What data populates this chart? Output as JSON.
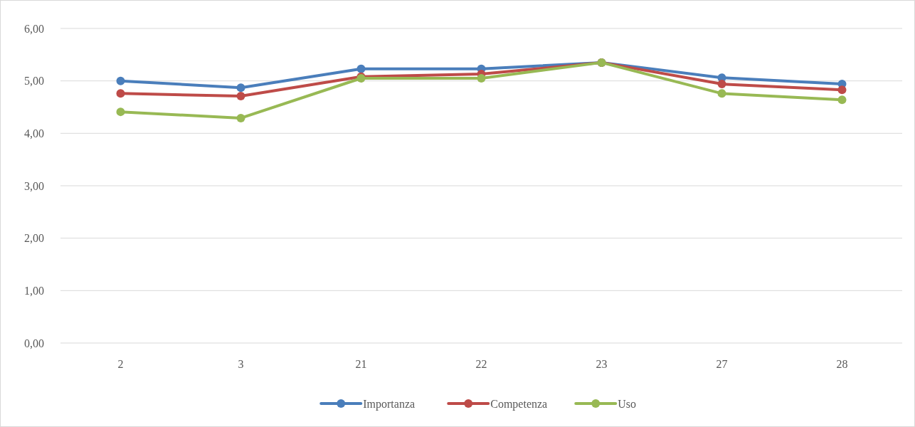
{
  "chart_data": {
    "type": "line",
    "categories": [
      "2",
      "3",
      "21",
      "22",
      "23",
      "27",
      "28"
    ],
    "series": [
      {
        "name": "Importanza",
        "color": "#4a7ebb",
        "values": [
          5.0,
          4.87,
          5.23,
          5.23,
          5.35,
          5.06,
          4.94
        ]
      },
      {
        "name": "Competenza",
        "color": "#be4b48",
        "values": [
          4.76,
          4.71,
          5.08,
          5.13,
          5.35,
          4.94,
          4.83
        ]
      },
      {
        "name": "Uso",
        "color": "#98b954",
        "values": [
          4.41,
          4.29,
          5.05,
          5.05,
          5.35,
          4.76,
          4.64
        ]
      }
    ],
    "ylim": [
      0,
      6
    ],
    "yticks": [
      {
        "value": 0,
        "label": "0,00"
      },
      {
        "value": 1,
        "label": "1,00"
      },
      {
        "value": 2,
        "label": "2,00"
      },
      {
        "value": 3,
        "label": "3,00"
      },
      {
        "value": 4,
        "label": "4,00"
      },
      {
        "value": 5,
        "label": "5,00"
      },
      {
        "value": 6,
        "label": "6,00"
      }
    ],
    "grid": "y",
    "legend": "bottom",
    "marker": "circle",
    "line_style": "solid"
  }
}
